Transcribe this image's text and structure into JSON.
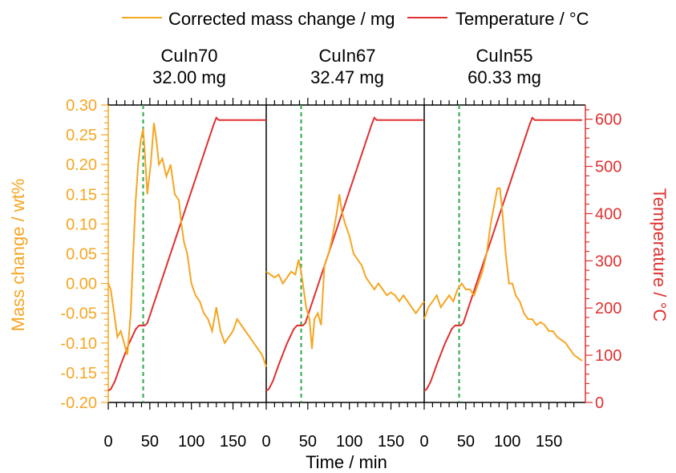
{
  "chart_data": {
    "type": "line",
    "legend": {
      "placement": "top",
      "entries": [
        {
          "label": "Corrected mass change / mg",
          "color": "#F5A623"
        },
        {
          "label": "Temperature / °C",
          "color": "#E03030"
        }
      ]
    },
    "xlabel": "Time / min",
    "ylabel_left": "Mass change / wt%",
    "ylabel_right": "Temperature / °C",
    "ylim_left": [
      -0.2,
      0.3
    ],
    "ylim_right": [
      0,
      630
    ],
    "yticks_left": [
      "0.30",
      "0.25",
      "0.20",
      "0.15",
      "0.10",
      "0.05",
      "0.00",
      "-0.05",
      "-0.10",
      "-0.15",
      "-0.20"
    ],
    "yticks_left_values": [
      0.3,
      0.25,
      0.2,
      0.15,
      0.1,
      0.05,
      0.0,
      -0.05,
      -0.1,
      -0.15,
      -0.2
    ],
    "yticks_right": [
      "600",
      "500",
      "400",
      "300",
      "200",
      "100",
      "0"
    ],
    "yticks_right_values": [
      600,
      500,
      400,
      300,
      200,
      100,
      0
    ],
    "xticks": [
      0,
      50,
      100,
      150
    ],
    "xticks_labels": [
      "0",
      "50",
      "100",
      "150"
    ],
    "xlim": [
      0,
      190
    ],
    "vline_x": 42,
    "colors": {
      "mass": "#F5A623",
      "temperature": "#E03030",
      "vline": "#2BA84A",
      "axis_left": "#F5A623",
      "axis_right": "#E03030"
    },
    "temperature_profile": {
      "x": [
        0,
        3,
        8,
        15,
        25,
        33,
        37,
        40,
        44,
        47,
        127,
        130,
        133,
        190
      ],
      "y": [
        25,
        28,
        45,
        80,
        125,
        155,
        163,
        163,
        163,
        168,
        590,
        603,
        598,
        598
      ]
    },
    "panels": [
      {
        "name": "CuIn70",
        "mass": "32.00 mg",
        "mass_series": {
          "x": [
            0,
            3,
            7,
            11,
            15,
            19,
            23,
            27,
            30,
            33,
            36,
            39,
            42,
            44,
            47,
            51,
            55,
            58,
            61,
            65,
            70,
            75,
            80,
            85,
            88,
            91,
            95,
            100,
            105,
            110,
            115,
            120,
            125,
            130,
            135,
            140,
            145,
            150,
            155,
            160,
            165,
            170,
            175,
            180,
            185,
            190
          ],
          "y": [
            0.0,
            -0.01,
            -0.05,
            -0.09,
            -0.08,
            -0.1,
            -0.12,
            -0.05,
            0.05,
            0.14,
            0.2,
            0.24,
            0.26,
            0.22,
            0.15,
            0.2,
            0.27,
            0.24,
            0.2,
            0.21,
            0.18,
            0.2,
            0.15,
            0.14,
            0.1,
            0.07,
            0.05,
            0.0,
            -0.02,
            -0.03,
            -0.05,
            -0.06,
            -0.08,
            -0.04,
            -0.08,
            -0.1,
            -0.09,
            -0.08,
            -0.06,
            -0.07,
            -0.08,
            -0.09,
            -0.1,
            -0.11,
            -0.12,
            -0.14
          ]
        }
      },
      {
        "name": "CuIn67",
        "mass": "32.47 mg",
        "mass_series": {
          "x": [
            0,
            5,
            10,
            15,
            20,
            25,
            30,
            35,
            39,
            42,
            45,
            48,
            52,
            55,
            58,
            62,
            66,
            70,
            75,
            80,
            85,
            88,
            91,
            95,
            100,
            105,
            110,
            115,
            120,
            125,
            130,
            135,
            140,
            145,
            150,
            155,
            160,
            165,
            170,
            175,
            180,
            185,
            190
          ],
          "y": [
            0.02,
            0.015,
            0.01,
            0.015,
            0.0,
            0.01,
            0.02,
            0.015,
            0.04,
            0.02,
            -0.01,
            -0.04,
            -0.06,
            -0.11,
            -0.06,
            -0.05,
            -0.07,
            0.03,
            0.05,
            0.08,
            0.12,
            0.15,
            0.12,
            0.1,
            0.08,
            0.05,
            0.04,
            0.03,
            0.01,
            0.0,
            -0.01,
            0.0,
            -0.01,
            -0.02,
            -0.015,
            -0.02,
            -0.03,
            -0.02,
            -0.03,
            -0.04,
            -0.05,
            -0.04,
            -0.03
          ]
        }
      },
      {
        "name": "CuIn55",
        "mass": "60.33 mg",
        "mass_series": {
          "x": [
            0,
            5,
            10,
            15,
            20,
            25,
            30,
            35,
            40,
            45,
            50,
            55,
            60,
            65,
            70,
            75,
            80,
            84,
            88,
            91,
            94,
            98,
            102,
            106,
            110,
            115,
            120,
            125,
            130,
            135,
            140,
            145,
            150,
            155,
            160,
            165,
            170,
            175,
            180,
            185,
            190
          ],
          "y": [
            -0.06,
            -0.04,
            -0.03,
            -0.02,
            -0.04,
            -0.03,
            -0.02,
            -0.03,
            -0.01,
            0.0,
            -0.01,
            -0.01,
            -0.02,
            0.0,
            0.02,
            0.05,
            0.1,
            0.13,
            0.16,
            0.16,
            0.12,
            0.05,
            0.0,
            0.0,
            -0.02,
            -0.03,
            -0.05,
            -0.06,
            -0.06,
            -0.07,
            -0.065,
            -0.07,
            -0.08,
            -0.08,
            -0.09,
            -0.095,
            -0.1,
            -0.11,
            -0.12,
            -0.125,
            -0.13
          ]
        }
      }
    ]
  }
}
